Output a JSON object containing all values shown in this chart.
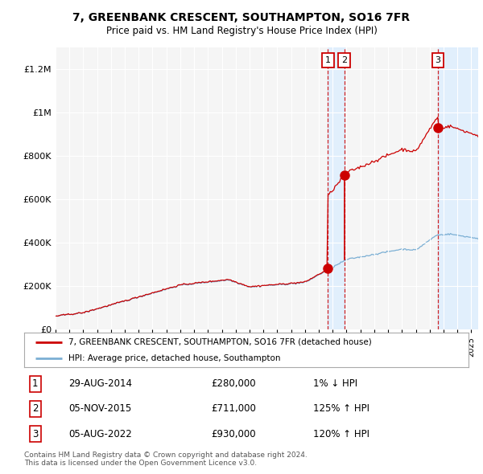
{
  "title": "7, GREENBANK CRESCENT, SOUTHAMPTON, SO16 7FR",
  "subtitle": "Price paid vs. HM Land Registry's House Price Index (HPI)",
  "ylabel_ticks": [
    "£0",
    "£200K",
    "£400K",
    "£600K",
    "£800K",
    "£1M",
    "£1.2M"
  ],
  "ylabel_values": [
    0,
    200000,
    400000,
    600000,
    800000,
    1000000,
    1200000
  ],
  "ylim": [
    0,
    1300000
  ],
  "xmin": 1995,
  "xmax": 2025.5,
  "sales": [
    {
      "label": "1",
      "date": "29-AUG-2014",
      "price": 280000,
      "x": 2014.66,
      "pct": "1%",
      "dir": "↓"
    },
    {
      "label": "2",
      "date": "05-NOV-2015",
      "price": 711000,
      "x": 2015.84,
      "pct": "125%",
      "dir": "↑"
    },
    {
      "label": "3",
      "date": "05-AUG-2022",
      "price": 930000,
      "x": 2022.59,
      "pct": "120%",
      "dir": "↑"
    }
  ],
  "red_color": "#cc0000",
  "blue_color": "#7bafd4",
  "dashed_color": "#cc0000",
  "shade_color": "#ddeeff",
  "legend_label_red": "7, GREENBANK CRESCENT, SOUTHAMPTON, SO16 7FR (detached house)",
  "legend_label_blue": "HPI: Average price, detached house, Southampton",
  "footnote": "Contains HM Land Registry data © Crown copyright and database right 2024.\nThis data is licensed under the Open Government Licence v3.0.",
  "background_color": "#ffffff",
  "plot_bg_color": "#f5f5f5"
}
